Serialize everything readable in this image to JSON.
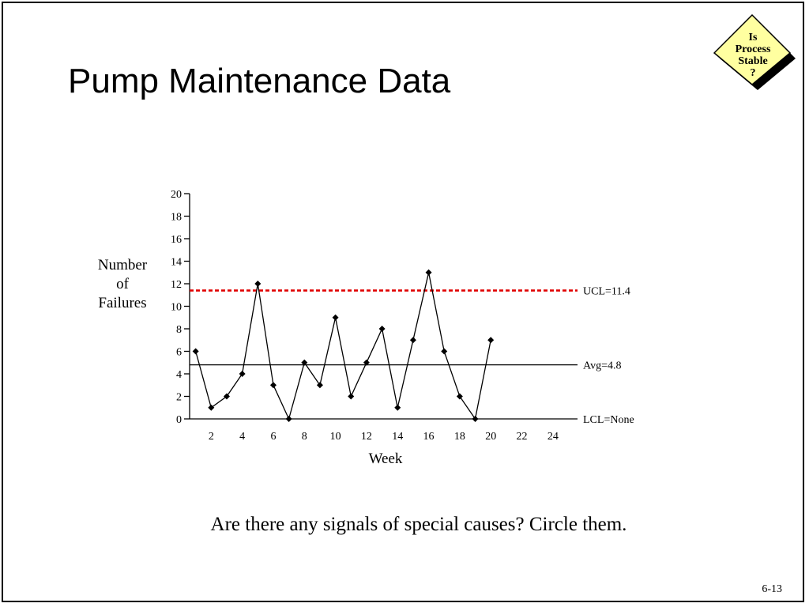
{
  "slide": {
    "title": "Pump Maintenance Data",
    "question": "Are there any signals of special causes?  Circle them.",
    "page_number": "6-13",
    "badge": {
      "lines": [
        "Is",
        "Process",
        "Stable",
        "?"
      ],
      "fill_color": "#FFFFA0",
      "shadow_color": "#000000"
    }
  },
  "chart_data": {
    "type": "line",
    "title": "",
    "xlabel": "Week",
    "ylabel_lines": [
      "Number",
      "of",
      "Failures"
    ],
    "xlim": [
      0,
      25
    ],
    "ylim": [
      0,
      20
    ],
    "x_ticks": [
      2,
      4,
      6,
      8,
      10,
      12,
      14,
      16,
      18,
      20,
      22,
      24
    ],
    "y_ticks": [
      0,
      2,
      4,
      6,
      8,
      10,
      12,
      14,
      16,
      18,
      20
    ],
    "series": [
      {
        "x": [
          1,
          2,
          3,
          4,
          5,
          6,
          7,
          8,
          9,
          10,
          11,
          12,
          13,
          14,
          15,
          16,
          17,
          18,
          19,
          20
        ],
        "values": [
          6,
          1,
          2,
          4,
          12,
          3,
          0,
          5,
          3,
          9,
          2,
          5,
          8,
          1,
          7,
          13,
          6,
          2,
          0,
          7
        ],
        "marker": "diamond",
        "color": "#000000"
      }
    ],
    "reference_lines": [
      {
        "label": "UCL=11.4",
        "value": 11.4,
        "style": "dashed",
        "color": "#E00000"
      },
      {
        "label": "Avg=4.8",
        "value": 4.8,
        "style": "solid",
        "color": "#000000"
      },
      {
        "label": "LCL=None",
        "value": 0,
        "style": "solid",
        "color": "#000000"
      }
    ],
    "grid": false
  }
}
